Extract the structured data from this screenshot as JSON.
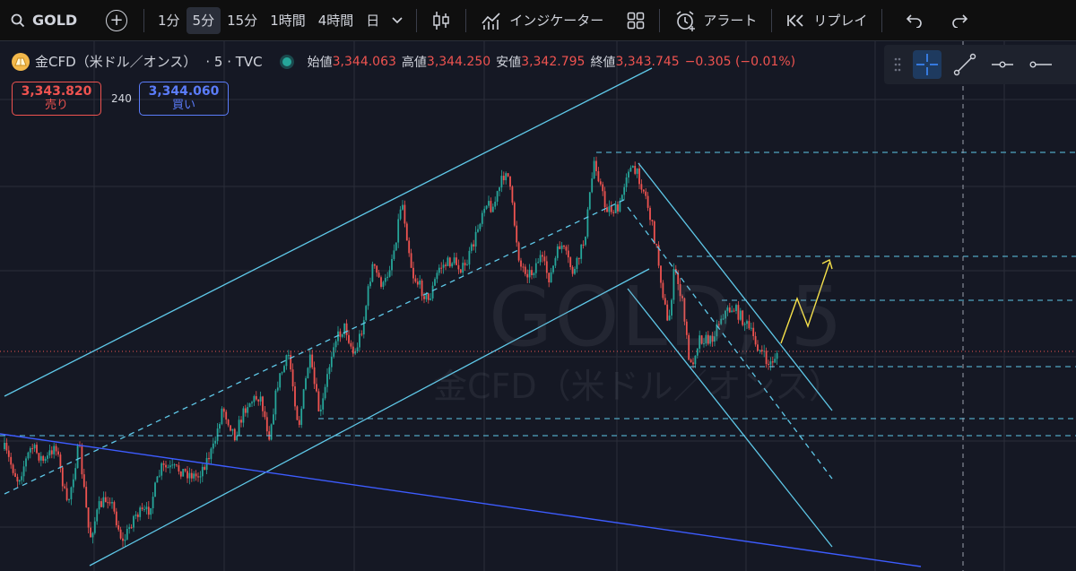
{
  "toolbar": {
    "symbol": "GOLD",
    "add_symbol": "+",
    "intervals": [
      "1分",
      "5分",
      "15分",
      "1時間",
      "4時間",
      "日"
    ],
    "active_interval": "5分",
    "indicators_label": "インジケーター",
    "alert_label": "アラート",
    "replay_label": "リプレイ",
    "undo": "↶",
    "redo": "↷"
  },
  "legend": {
    "symbol_name": "金CFD（米ドル／オンス）",
    "timeframe": "· 5 · TVC",
    "open_label": "始値",
    "open": "3,344.063",
    "high_label": "高値",
    "high": "3,344.250",
    "low_label": "安値",
    "low": "3,342.795",
    "close_label": "終値",
    "close": "3,343.745",
    "change": "−0.305 (−0.01%)"
  },
  "trade": {
    "sell_price": "3,343.820",
    "sell_label": "売り",
    "spread": "240",
    "buy_price": "3,344.060",
    "buy_label": "買い"
  },
  "watermark": {
    "main": "GOLD, 5",
    "sub": "金CFD（米ドル／オンス）"
  },
  "colors": {
    "background": "#151824",
    "up_candle": "#26a69a",
    "down_candle": "#ef5350",
    "channel_line": "#5fc8e8",
    "trend_line": "#3d5cff",
    "projection": "#f7e24a",
    "price_line": "#ef5350"
  },
  "icons": [
    "search-icon",
    "plus-icon",
    "chevron-down-icon",
    "candlestick-icon",
    "indicators-icon",
    "layout-grid-icon",
    "alarm-clock-icon",
    "replay-icon",
    "undo-icon",
    "redo-icon",
    "drag-handle-icon",
    "crosshair-icon",
    "trend-line-icon",
    "horizontal-ray-icon",
    "horizontal-line-icon",
    "gold-logo-icon"
  ]
}
